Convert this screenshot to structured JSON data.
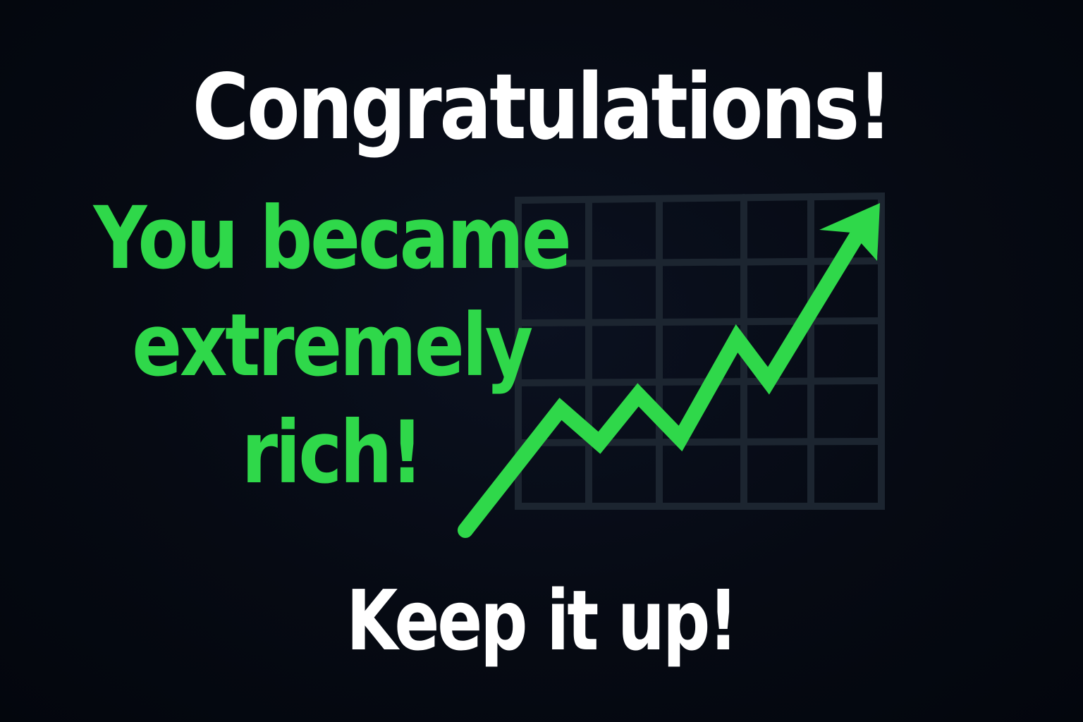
{
  "colors": {
    "background": "#050911",
    "headline_text": "#ffffff",
    "accent_green": "#2fd84a",
    "grid_lines": "#1c2530"
  },
  "headline": {
    "text": "Congratulations!"
  },
  "message": {
    "lines": [
      "You became",
      "extremely",
      "rich!"
    ]
  },
  "footer": {
    "text": "Keep it up!"
  },
  "illustration": {
    "icon": "trend-up-arrow-icon",
    "grid": "4x5 grid behind an upward zigzag green arrow"
  }
}
